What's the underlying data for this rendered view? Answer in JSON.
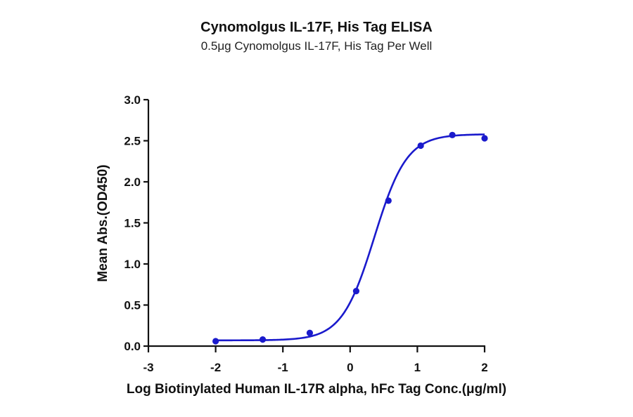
{
  "chart_data": {
    "type": "scatter",
    "title": "Cynomolgus IL-17F, His Tag ELISA",
    "subtitle": "0.5μg Cynomolgus IL-17F, His Tag Per Well",
    "xlabel": "Log Biotinylated Human IL-17R alpha, hFc Tag Conc.(μg/ml)",
    "ylabel": "Mean Abs.(OD450)",
    "xlim": [
      -3,
      2
    ],
    "ylim": [
      0,
      3.0
    ],
    "x_ticks": [
      "-3",
      "-2",
      "-1",
      "0",
      "1",
      "2"
    ],
    "y_ticks": [
      "0.0",
      "0.5",
      "1.0",
      "1.5",
      "2.0",
      "2.5",
      "3.0"
    ],
    "grid": false,
    "legend": null,
    "series": [
      {
        "name": "Cynomolgus IL-17F, His Tag",
        "color": "#1a1acc",
        "x": [
          -2.0,
          -1.3,
          -0.6,
          0.09,
          0.57,
          1.05,
          1.52,
          2.0
        ],
        "y": [
          0.06,
          0.08,
          0.16,
          0.67,
          1.77,
          2.44,
          2.57,
          2.53
        ],
        "fit": {
          "model": "4PL",
          "bottom": 0.07,
          "top": 2.58,
          "logEC50": 0.36,
          "hill": 1.8
        }
      }
    ]
  }
}
